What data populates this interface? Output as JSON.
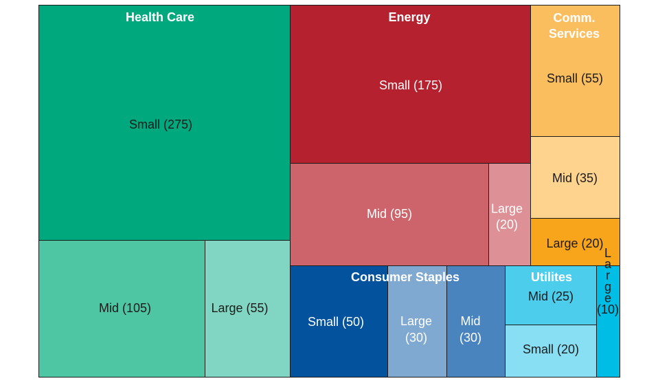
{
  "chart_data": {
    "type": "treemap",
    "sectors": [
      {
        "name": "Health Care",
        "title_lines": [
          "Health Care"
        ],
        "items": [
          {
            "label": "Small (275)",
            "value": 275,
            "color": "#00a87e",
            "text": "#1a1a1a"
          },
          {
            "label": "Mid (105)",
            "value": 105,
            "color": "#4ec6a4",
            "text": "#1a1a1a"
          },
          {
            "label": "Large (55)",
            "value": 55,
            "color": "#80d6c2",
            "text": "#1a1a1a"
          }
        ]
      },
      {
        "name": "Energy",
        "title_lines": [
          "Energy"
        ],
        "items": [
          {
            "label": "Small (175)",
            "value": 175,
            "color": "#b5212e",
            "text": "#ffffff"
          },
          {
            "label": "Mid (95)",
            "value": 95,
            "color": "#cd646b",
            "text": "#ffffff"
          },
          {
            "label": "Large (20)",
            "label_lines": [
              "Large",
              "(20)"
            ],
            "value": 20,
            "color": "#dd9196",
            "text": "#ffffff"
          }
        ]
      },
      {
        "name": "Comm. Services",
        "title_lines": [
          "Comm.",
          "Services"
        ],
        "items": [
          {
            "label": "Small (55)",
            "value": 55,
            "color": "#fbbe5e",
            "text": "#1a1a1a"
          },
          {
            "label": "Mid (35)",
            "value": 35,
            "color": "#fdd38e",
            "text": "#1a1a1a"
          },
          {
            "label": "Large (20)",
            "value": 20,
            "color": "#f9a51b",
            "text": "#1a1a1a"
          }
        ]
      },
      {
        "name": "Consumer Staples",
        "title_lines": [
          "Consumer Staples"
        ],
        "items": [
          {
            "label": "Small (50)",
            "value": 50,
            "color": "#02529e",
            "text": "#ffffff"
          },
          {
            "label": "Large (30)",
            "label_lines": [
              "Large",
              "(30)"
            ],
            "value": 30,
            "color": "#7fa9d1",
            "text": "#ffffff"
          },
          {
            "label": "Mid (30)",
            "label_lines": [
              "Mid",
              "(30)"
            ],
            "value": 30,
            "color": "#4a84bf",
            "text": "#ffffff"
          }
        ]
      },
      {
        "name": "Utilites",
        "title_lines": [
          "Utilites"
        ],
        "items": [
          {
            "label": "Mid (25)",
            "value": 25,
            "color": "#4ccdeb",
            "text": "#1a1a1a"
          },
          {
            "label": "Small (20)",
            "value": 20,
            "color": "#88dff4",
            "text": "#1a1a1a"
          },
          {
            "label": "Large (10)",
            "label_lines": [
              "L",
              "a",
              "r",
              "g",
              "e",
              "(10)"
            ],
            "value": 10,
            "color": "#00bde6",
            "text": "#1a1a1a"
          }
        ]
      }
    ]
  }
}
